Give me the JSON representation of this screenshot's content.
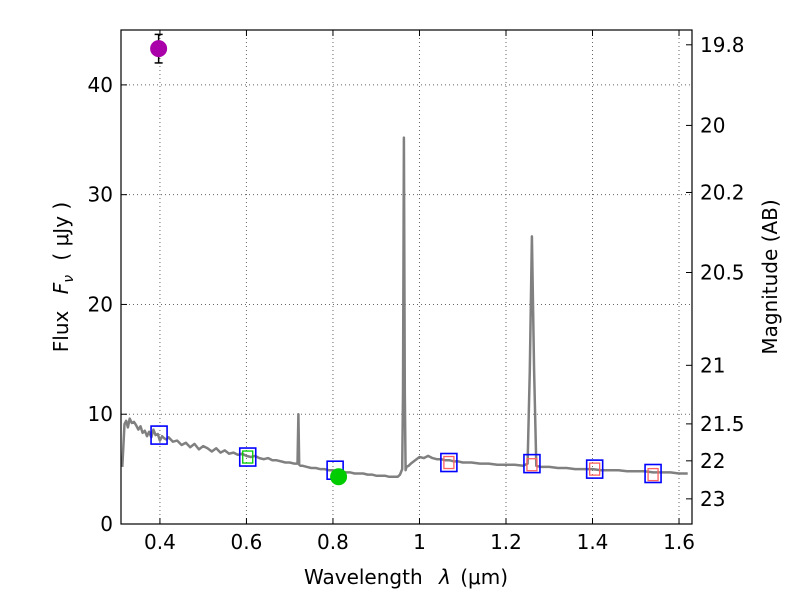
{
  "chart_data": {
    "type": "scatter",
    "xlabel_text": "Wavelength",
    "xlabel_symbol": "λ",
    "xlabel_unit": "(μm)",
    "ylabel_text": "Flux",
    "ylabel_symbol": "F",
    "ylabel_sub": "ν",
    "ylabel_unit": "( μJy )",
    "y2label": "Magnitude (AB)",
    "xlim": [
      0.31,
      1.63
    ],
    "ylim": [
      0,
      45
    ],
    "xticks": [
      0.4,
      0.6,
      0.8,
      1.0,
      1.2,
      1.4,
      1.6
    ],
    "xtick_labels": [
      "0.4",
      "0.6",
      "0.8",
      "1",
      "1.2",
      "1.4",
      "1.6"
    ],
    "yticks": [
      0,
      10,
      20,
      30,
      40
    ],
    "ytick_labels": [
      "0",
      "10",
      "20",
      "30",
      "40"
    ],
    "mag_ticks": [
      19.8,
      20,
      20.2,
      20.5,
      21,
      21.5,
      22,
      23
    ],
    "mag_tick_labels": [
      "19.8",
      "20",
      "20.2",
      "20.5",
      "21",
      "21.5",
      "22",
      "23"
    ],
    "grid": true,
    "series": [
      {
        "name": "model spectrum",
        "kind": "line",
        "color": "#808080",
        "x": [
          0.313,
          0.318,
          0.322,
          0.326,
          0.33,
          0.335,
          0.34,
          0.345,
          0.35,
          0.355,
          0.36,
          0.365,
          0.37,
          0.375,
          0.38,
          0.385,
          0.39,
          0.395,
          0.4,
          0.405,
          0.41,
          0.415,
          0.42,
          0.43,
          0.44,
          0.45,
          0.46,
          0.47,
          0.48,
          0.49,
          0.5,
          0.51,
          0.52,
          0.53,
          0.54,
          0.55,
          0.56,
          0.57,
          0.58,
          0.59,
          0.6,
          0.61,
          0.62,
          0.63,
          0.64,
          0.65,
          0.66,
          0.67,
          0.68,
          0.69,
          0.7,
          0.71,
          0.718,
          0.72,
          0.722,
          0.725,
          0.73,
          0.74,
          0.75,
          0.76,
          0.77,
          0.78,
          0.79,
          0.8,
          0.81,
          0.82,
          0.83,
          0.84,
          0.85,
          0.86,
          0.87,
          0.88,
          0.89,
          0.9,
          0.91,
          0.92,
          0.93,
          0.94,
          0.95,
          0.955,
          0.96,
          0.962,
          0.964,
          0.966,
          0.968,
          0.97,
          0.975,
          0.98,
          0.99,
          1.0,
          1.01,
          1.02,
          1.03,
          1.04,
          1.05,
          1.06,
          1.07,
          1.08,
          1.09,
          1.1,
          1.12,
          1.14,
          1.16,
          1.18,
          1.2,
          1.22,
          1.24,
          1.25,
          1.255,
          1.26,
          1.265,
          1.27,
          1.28,
          1.3,
          1.32,
          1.34,
          1.36,
          1.38,
          1.4,
          1.42,
          1.44,
          1.46,
          1.48,
          1.5,
          1.52,
          1.54,
          1.56,
          1.58,
          1.6,
          1.62
        ],
        "y": [
          5.2,
          9.1,
          9.4,
          8.8,
          9.6,
          9.2,
          9.3,
          9.0,
          8.6,
          8.9,
          8.3,
          8.5,
          8.0,
          8.4,
          7.9,
          8.6,
          8.1,
          8.2,
          7.6,
          8.0,
          7.8,
          7.7,
          7.9,
          7.5,
          7.6,
          7.2,
          7.4,
          7.0,
          7.3,
          6.8,
          7.1,
          6.9,
          6.6,
          6.9,
          6.5,
          6.7,
          6.4,
          6.5,
          6.3,
          6.4,
          6.2,
          6.1,
          6.2,
          6.0,
          5.9,
          6.0,
          5.8,
          5.8,
          5.7,
          5.6,
          5.6,
          5.5,
          5.5,
          10.0,
          5.4,
          5.3,
          5.3,
          5.2,
          5.1,
          5.1,
          5.0,
          5.0,
          4.9,
          4.9,
          4.8,
          4.8,
          4.7,
          4.7,
          4.6,
          4.6,
          4.6,
          4.5,
          4.5,
          4.4,
          4.4,
          4.4,
          4.3,
          4.3,
          4.3,
          4.5,
          5.0,
          12.0,
          35.2,
          12.0,
          4.9,
          5.2,
          5.3,
          5.5,
          5.8,
          6.1,
          6.0,
          6.2,
          6.0,
          5.9,
          5.9,
          5.8,
          5.8,
          5.7,
          5.7,
          5.6,
          5.6,
          5.5,
          5.5,
          5.4,
          5.4,
          5.4,
          5.3,
          5.5,
          14.0,
          26.2,
          14.0,
          5.3,
          5.2,
          5.2,
          5.1,
          5.1,
          5.0,
          5.0,
          5.0,
          4.9,
          4.9,
          4.9,
          4.8,
          4.8,
          4.8,
          4.7,
          4.7,
          4.7,
          4.6,
          4.6
        ]
      },
      {
        "name": "blue boxes",
        "kind": "square-marker",
        "color": "#0000ff",
        "x": [
          0.398,
          0.603,
          0.805,
          1.068,
          1.26,
          1.405,
          1.54
        ],
        "y": [
          8.1,
          6.1,
          4.9,
          5.6,
          5.5,
          5.0,
          4.6
        ]
      },
      {
        "name": "red boxes",
        "kind": "small-square-marker",
        "color": "#ff6060",
        "x": [
          1.068,
          1.26,
          1.405,
          1.54
        ],
        "y": [
          5.6,
          5.4,
          5.0,
          4.5
        ]
      },
      {
        "name": "green box",
        "kind": "small-square-marker",
        "color": "#00cc00",
        "x": [
          0.603
        ],
        "y": [
          6.1
        ]
      },
      {
        "name": "magenta point",
        "kind": "point-errorbar",
        "color": "#aa00aa",
        "x": [
          0.397
        ],
        "y": [
          43.3
        ],
        "yerr": [
          1.3
        ]
      },
      {
        "name": "green point",
        "kind": "point-errorbar",
        "color": "#00cc00",
        "x": [
          0.813
        ],
        "y": [
          4.3
        ],
        "yerr": [
          0.25
        ]
      }
    ]
  }
}
